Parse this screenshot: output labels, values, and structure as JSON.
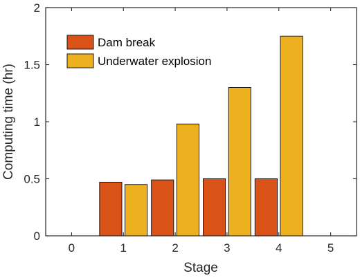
{
  "chart_data": {
    "type": "bar",
    "xlabel": "Stage",
    "ylabel": "Computing time (hr)",
    "xlim": [
      -0.5,
      5.5
    ],
    "ylim": [
      0,
      2
    ],
    "xticks": [
      0,
      1,
      2,
      3,
      4,
      5
    ],
    "yticks": [
      0,
      0.5,
      1,
      1.5,
      2
    ],
    "x_tick_labels": [
      "0",
      "1",
      "2",
      "3",
      "4",
      "5"
    ],
    "y_tick_labels": [
      "0",
      "0.5",
      "1",
      "1.5",
      "2"
    ],
    "categories": [
      1,
      2,
      3,
      4
    ],
    "series": [
      {
        "name": "Dam break",
        "color": "#D95319",
        "values": [
          0.47,
          0.49,
          0.5,
          0.5
        ]
      },
      {
        "name": "Underwater explosion",
        "color": "#EDB120",
        "values": [
          0.45,
          0.98,
          1.3,
          1.75
        ]
      }
    ],
    "legend_position": "top-left",
    "grid": false
  }
}
